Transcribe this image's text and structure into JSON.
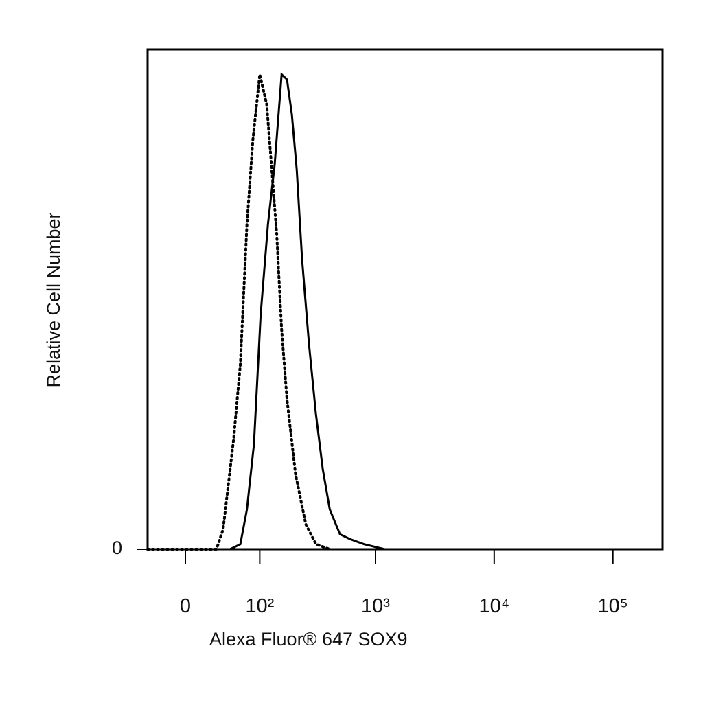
{
  "chart_data": {
    "type": "histogram-overlay",
    "y_label": "Relative Cell Number",
    "x_label": "Alexa Fluor® 647 SOX9",
    "xscale": "biexponential",
    "xlim": [
      -40,
      262000
    ],
    "xticks": [
      0,
      {
        "value": 100,
        "label": "10²"
      },
      {
        "value": 1000,
        "label": "10³"
      },
      {
        "value": 10000,
        "label": "10⁴"
      },
      {
        "value": 100000,
        "label": "10⁵"
      }
    ],
    "ylim": [
      0,
      100
    ],
    "yticks": [
      0
    ],
    "series": [
      {
        "style": "solid",
        "color": "#000000",
        "x": [
          -40,
          10,
          49,
          64,
          75,
          88,
          102,
          119,
          137,
          158,
          176,
          194,
          214,
          238,
          273,
          313,
          358,
          410,
          501,
          612,
          800,
          1195,
          7700,
          262000
        ],
        "values": [
          0,
          0,
          0,
          1,
          8,
          21,
          47,
          65,
          77,
          95,
          94,
          87,
          76,
          58,
          41,
          27,
          16,
          8,
          3,
          2,
          1,
          0,
          0,
          0
        ]
      },
      {
        "style": "dotted",
        "color": "#000000",
        "x": [
          -40,
          10,
          32,
          40,
          54,
          64,
          75,
          86,
          100,
          116,
          128,
          143,
          158,
          176,
          209,
          256,
          313,
          410
        ],
        "values": [
          0,
          0,
          0,
          4,
          22,
          37,
          65,
          82,
          95,
          89,
          77,
          63,
          44,
          30,
          15,
          5,
          1,
          0
        ]
      }
    ]
  }
}
